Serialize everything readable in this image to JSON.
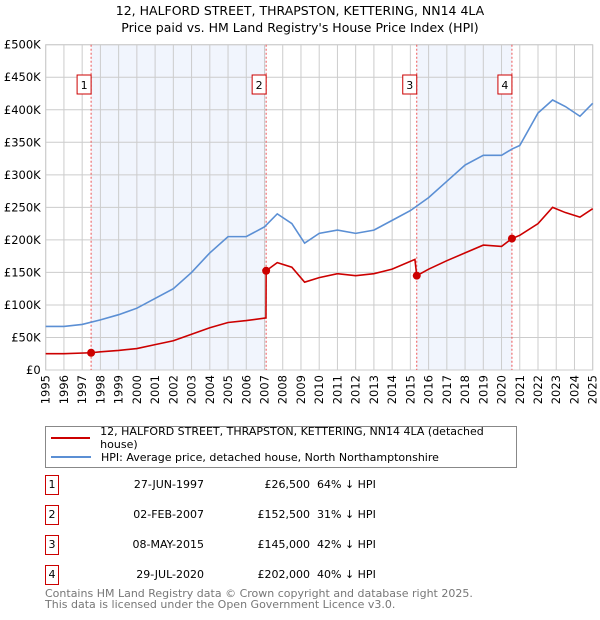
{
  "chart_data": {
    "type": "line",
    "title": "12, HALFORD STREET, THRAPSTON, KETTERING, NN14 4LA",
    "subtitle": "Price paid vs. HM Land Registry's House Price Index (HPI)",
    "xlim": [
      1995,
      2025
    ],
    "ylim": [
      0,
      500000
    ],
    "grid": true,
    "y_ticks": [
      {
        "v": 0,
        "label": "£0"
      },
      {
        "v": 50000,
        "label": "£50K"
      },
      {
        "v": 100000,
        "label": "£100K"
      },
      {
        "v": 150000,
        "label": "£150K"
      },
      {
        "v": 200000,
        "label": "£200K"
      },
      {
        "v": 250000,
        "label": "£250K"
      },
      {
        "v": 300000,
        "label": "£300K"
      },
      {
        "v": 350000,
        "label": "£350K"
      },
      {
        "v": 400000,
        "label": "£400K"
      },
      {
        "v": 450000,
        "label": "£450K"
      },
      {
        "v": 500000,
        "label": "£500K"
      }
    ],
    "x_ticks": [
      "1995",
      "1996",
      "1997",
      "1998",
      "1999",
      "2000",
      "2001",
      "2002",
      "2003",
      "2004",
      "2005",
      "2006",
      "2007",
      "2008",
      "2009",
      "2010",
      "2011",
      "2012",
      "2013",
      "2014",
      "2015",
      "2016",
      "2017",
      "2018",
      "2019",
      "2020",
      "2021",
      "2022",
      "2023",
      "2024",
      "2025"
    ],
    "shaded_ranges": [
      [
        1997.49,
        2007.09
      ],
      [
        2015.35,
        2020.57
      ]
    ],
    "series": [
      {
        "name": "12, HALFORD STREET, THRAPSTON, KETTERING, NN14 4LA (detached house)",
        "color": "#cc0000",
        "x": [
          1995,
          1996,
          1997.49,
          1998,
          1999,
          2000,
          2001,
          2002,
          2003,
          2004,
          2005,
          2006,
          2007.08,
          2007.09,
          2007.7,
          2008.5,
          2009.2,
          2010,
          2011,
          2012,
          2013,
          2014,
          2015.25,
          2015.35,
          2016,
          2017,
          2018,
          2019,
          2020,
          2020.57,
          2021,
          2022,
          2022.8,
          2023.5,
          2024.3,
          2025
        ],
        "y": [
          25000,
          25000,
          26500,
          28000,
          30000,
          33000,
          39000,
          45000,
          55000,
          65000,
          73000,
          76000,
          80000,
          152500,
          165000,
          158000,
          135000,
          142000,
          148000,
          145000,
          148000,
          155000,
          170000,
          145000,
          155000,
          168000,
          180000,
          192000,
          190000,
          202000,
          207000,
          225000,
          250000,
          242000,
          235000,
          248000
        ]
      },
      {
        "name": "HPI: Average price, detached house, North Northamptonshire",
        "color": "#5b8fd4",
        "x": [
          1995,
          1996,
          1997,
          1998,
          1999,
          2000,
          2001,
          2002,
          2003,
          2004,
          2005,
          2006,
          2007,
          2007.7,
          2008.5,
          2009.2,
          2010,
          2011,
          2012,
          2013,
          2014,
          2015,
          2016,
          2017,
          2018,
          2019,
          2020,
          2020.6,
          2021,
          2022,
          2022.8,
          2023.5,
          2024.3,
          2025
        ],
        "y": [
          67000,
          67000,
          70000,
          77000,
          85000,
          95000,
          110000,
          125000,
          150000,
          180000,
          205000,
          205000,
          220000,
          240000,
          225000,
          195000,
          210000,
          215000,
          210000,
          215000,
          230000,
          245000,
          265000,
          290000,
          315000,
          330000,
          330000,
          340000,
          345000,
          395000,
          415000,
          405000,
          390000,
          410000
        ]
      }
    ],
    "sales": [
      {
        "n": "1",
        "x": 1997.49,
        "y": 26500,
        "date": "27-JUN-1997",
        "price": "£26,500",
        "pct": "64% ↓ HPI"
      },
      {
        "n": "2",
        "x": 2007.09,
        "y": 152500,
        "date": "02-FEB-2007",
        "price": "£152,500",
        "pct": "31% ↓ HPI"
      },
      {
        "n": "3",
        "x": 2015.35,
        "y": 145000,
        "date": "08-MAY-2015",
        "price": "£145,000",
        "pct": "42% ↓ HPI"
      },
      {
        "n": "4",
        "x": 2020.57,
        "y": 202000,
        "date": "29-JUL-2020",
        "price": "£202,000",
        "pct": "40% ↓ HPI"
      }
    ],
    "legend": "below"
  },
  "footer": {
    "line1": "Contains HM Land Registry data © Crown copyright and database right 2025.",
    "line2": "This data is licensed under the Open Government Licence v3.0."
  }
}
